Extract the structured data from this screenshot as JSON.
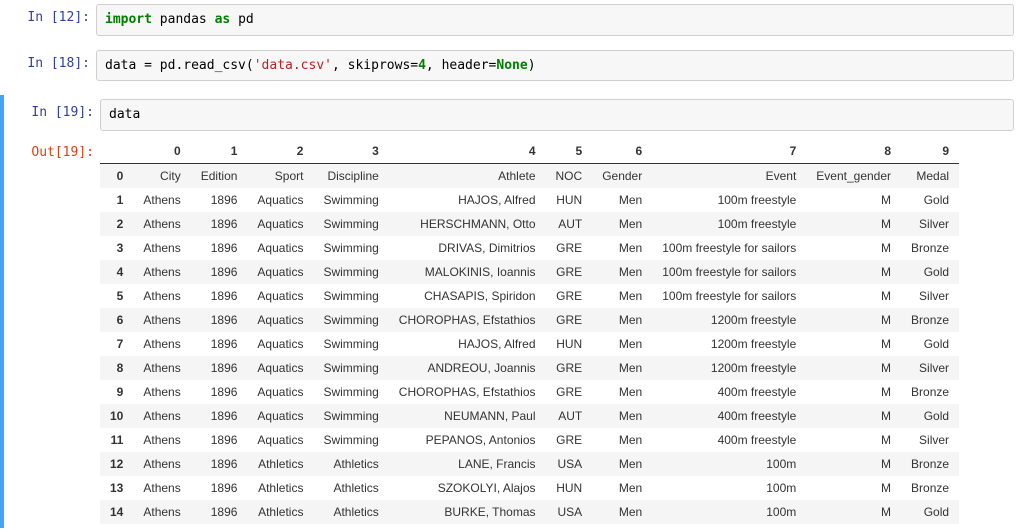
{
  "cells": {
    "c0": {
      "prompt": "In [12]:",
      "tokens": [
        "import",
        " pandas ",
        "as",
        " pd"
      ],
      "classes": [
        "kw",
        "",
        "kw",
        ""
      ]
    },
    "c1": {
      "prompt": "In [18]:",
      "tokens": [
        "data = pd.read_csv(",
        "'data.csv'",
        ", skiprows=",
        "4",
        ", header=",
        "None",
        ")"
      ],
      "classes": [
        "",
        "str",
        "",
        "num",
        "",
        "kwNone",
        ""
      ]
    },
    "c2": {
      "prompt": "In [19]:",
      "tokens": [
        "data"
      ],
      "classes": [
        ""
      ]
    },
    "out_prompt": "Out[19]:"
  },
  "table": {
    "columns": [
      "0",
      "1",
      "2",
      "3",
      "4",
      "5",
      "6",
      "7",
      "8",
      "9"
    ],
    "header_row": [
      "City",
      "Edition",
      "Sport",
      "Discipline",
      "Athlete",
      "NOC",
      "Gender",
      "Event",
      "Event_gender",
      "Medal"
    ],
    "rows": [
      [
        "Athens",
        "1896",
        "Aquatics",
        "Swimming",
        "HAJOS, Alfred",
        "HUN",
        "Men",
        "100m freestyle",
        "M",
        "Gold"
      ],
      [
        "Athens",
        "1896",
        "Aquatics",
        "Swimming",
        "HERSCHMANN, Otto",
        "AUT",
        "Men",
        "100m freestyle",
        "M",
        "Silver"
      ],
      [
        "Athens",
        "1896",
        "Aquatics",
        "Swimming",
        "DRIVAS, Dimitrios",
        "GRE",
        "Men",
        "100m freestyle for sailors",
        "M",
        "Bronze"
      ],
      [
        "Athens",
        "1896",
        "Aquatics",
        "Swimming",
        "MALOKINIS, Ioannis",
        "GRE",
        "Men",
        "100m freestyle for sailors",
        "M",
        "Gold"
      ],
      [
        "Athens",
        "1896",
        "Aquatics",
        "Swimming",
        "CHASAPIS, Spiridon",
        "GRE",
        "Men",
        "100m freestyle for sailors",
        "M",
        "Silver"
      ],
      [
        "Athens",
        "1896",
        "Aquatics",
        "Swimming",
        "CHOROPHAS, Efstathios",
        "GRE",
        "Men",
        "1200m freestyle",
        "M",
        "Bronze"
      ],
      [
        "Athens",
        "1896",
        "Aquatics",
        "Swimming",
        "HAJOS, Alfred",
        "HUN",
        "Men",
        "1200m freestyle",
        "M",
        "Gold"
      ],
      [
        "Athens",
        "1896",
        "Aquatics",
        "Swimming",
        "ANDREOU, Joannis",
        "GRE",
        "Men",
        "1200m freestyle",
        "M",
        "Silver"
      ],
      [
        "Athens",
        "1896",
        "Aquatics",
        "Swimming",
        "CHOROPHAS, Efstathios",
        "GRE",
        "Men",
        "400m freestyle",
        "M",
        "Bronze"
      ],
      [
        "Athens",
        "1896",
        "Aquatics",
        "Swimming",
        "NEUMANN, Paul",
        "AUT",
        "Men",
        "400m freestyle",
        "M",
        "Gold"
      ],
      [
        "Athens",
        "1896",
        "Aquatics",
        "Swimming",
        "PEPANOS, Antonios",
        "GRE",
        "Men",
        "400m freestyle",
        "M",
        "Silver"
      ],
      [
        "Athens",
        "1896",
        "Athletics",
        "Athletics",
        "LANE, Francis",
        "USA",
        "Men",
        "100m",
        "M",
        "Bronze"
      ],
      [
        "Athens",
        "1896",
        "Athletics",
        "Athletics",
        "SZOKOLYI, Alajos",
        "HUN",
        "Men",
        "100m",
        "M",
        "Bronze"
      ],
      [
        "Athens",
        "1896",
        "Athletics",
        "Athletics",
        "BURKE, Thomas",
        "USA",
        "Men",
        "100m",
        "M",
        "Gold"
      ]
    ],
    "index_start": 0,
    "styling": {
      "even_row_bg": "#f5f5f5",
      "border_color": "#333333",
      "font_size": 12,
      "cell_padding": "5px 10px",
      "text_align": "right"
    }
  }
}
